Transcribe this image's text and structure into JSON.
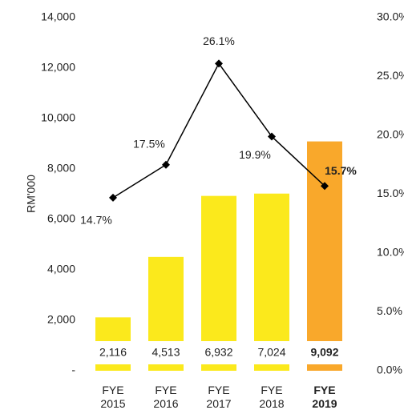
{
  "chart_data": {
    "type": "bar",
    "categories": [
      "FYE 2015",
      "FYE 2016",
      "FYE 2017",
      "FYE 2018",
      "FYE 2019"
    ],
    "y_label": "RM'000",
    "ylim": [
      0,
      14000
    ],
    "yticks": [
      {
        "value": 0,
        "label": "-"
      },
      {
        "value": 2000,
        "label": "2,000"
      },
      {
        "value": 4000,
        "label": "4,000"
      },
      {
        "value": 6000,
        "label": "6,000"
      },
      {
        "value": 8000,
        "label": "8,000"
      },
      {
        "value": 10000,
        "label": "10,000"
      },
      {
        "value": 12000,
        "label": "12,000"
      },
      {
        "value": 14000,
        "label": "14,000"
      }
    ],
    "y2lim": [
      0,
      30
    ],
    "y2ticks": [
      {
        "value": 0,
        "label": "0.0%"
      },
      {
        "value": 5,
        "label": "5.0%"
      },
      {
        "value": 10,
        "label": "10.0%"
      },
      {
        "value": 15,
        "label": "15.0%"
      },
      {
        "value": 20,
        "label": "20.0%"
      },
      {
        "value": 25,
        "label": "25.0%"
      },
      {
        "value": 30,
        "label": "30.0%"
      }
    ],
    "highlight_index": 4,
    "series": [
      {
        "type": "bar",
        "colors": [
          "#fbe91c",
          "#fbe91c",
          "#fbe91c",
          "#fbe91c",
          "#f9a82b"
        ],
        "values": [
          2116,
          4513,
          6932,
          7024,
          9092
        ],
        "value_labels": [
          "2,116",
          "4,513",
          "6,932",
          "7,024",
          "9,092"
        ]
      },
      {
        "type": "line",
        "axis": "y2",
        "color": "#000000",
        "values": [
          14.7,
          17.5,
          26.1,
          19.9,
          15.7
        ],
        "value_labels": [
          "14.7%",
          "17.5%",
          "26.1%",
          "19.9%",
          "15.7%"
        ]
      }
    ]
  }
}
